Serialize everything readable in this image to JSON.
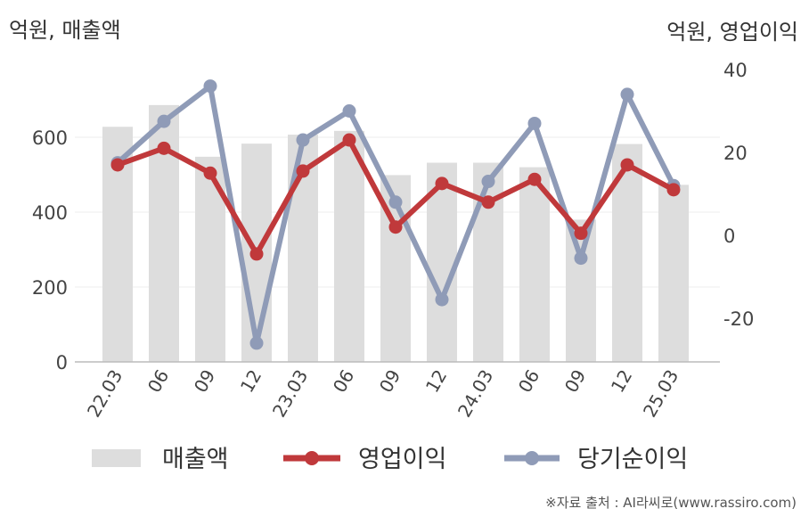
{
  "chart_data": {
    "type": "bar+line",
    "left_axis_label": "억원, 매출액",
    "right_axis_label": "억원, 영업이익",
    "categories": [
      "22.03",
      "06",
      "09",
      "12",
      "23.03",
      "06",
      "09",
      "12",
      "24.03",
      "06",
      "09",
      "12",
      "25.03"
    ],
    "bar_series": {
      "name": "매출액",
      "color": "#dddddd",
      "axis": "left",
      "values": [
        628,
        686,
        548,
        583,
        607,
        617,
        499,
        532,
        532,
        520,
        380,
        582,
        473
      ]
    },
    "line_series": [
      {
        "name": "영업이익",
        "color": "#c0393b",
        "axis": "right",
        "values": [
          17,
          21,
          15,
          -4.5,
          15.5,
          23,
          2,
          12.5,
          8,
          13.5,
          0.5,
          17,
          11
        ]
      },
      {
        "name": "당기순이익",
        "color": "#8f9bb7",
        "axis": "right",
        "values": [
          17.5,
          27.5,
          36,
          -26,
          23,
          30,
          8,
          -15.5,
          13,
          27,
          -5.5,
          34,
          12
        ]
      }
    ],
    "left_axis": {
      "ylim": [
        0,
        800
      ],
      "ticks": [
        0,
        200,
        400,
        600
      ]
    },
    "right_axis": {
      "ylim": [
        -30,
        40
      ],
      "ticks": [
        -20,
        0,
        20,
        40
      ]
    },
    "grid": true,
    "legend_position": "bottom"
  },
  "source_text": "※자료 출처 : AI라씨로(www.rassiro.com)"
}
